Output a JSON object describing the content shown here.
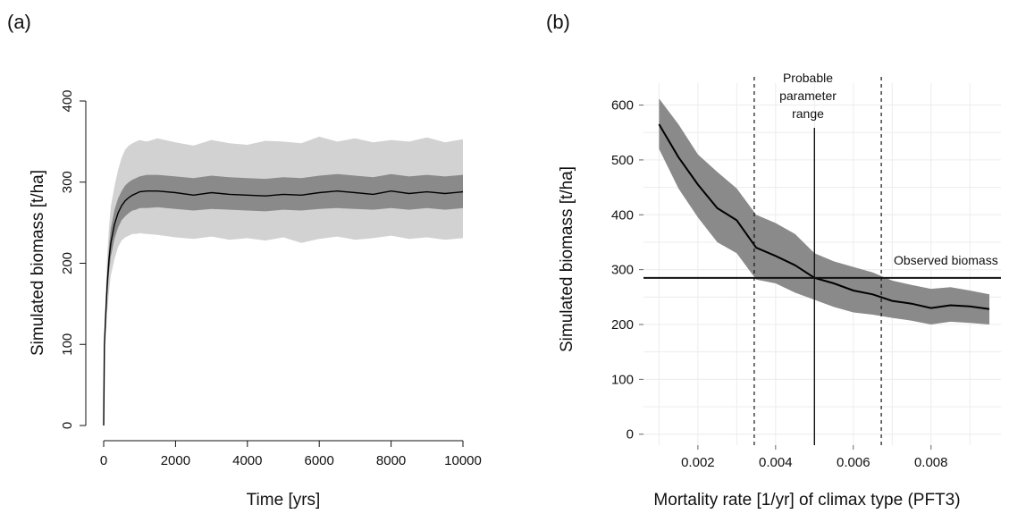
{
  "panels": {
    "a": {
      "tag": "(a)"
    },
    "b": {
      "tag": "(b)"
    }
  },
  "colors": {
    "band_outer": "#d2d2d2",
    "band_inner": "#8a8a8b",
    "line": "#000000",
    "grid": "#ececec"
  },
  "chart_data": [
    {
      "id": "a",
      "type": "area",
      "title": "",
      "xlabel": "Time [yrs]",
      "ylabel": "Simulated biomass [t/ha]",
      "xlim": [
        0,
        10000
      ],
      "ylim": [
        0,
        400
      ],
      "xticks": [
        "0",
        "2000",
        "4000",
        "6000",
        "8000",
        "10000"
      ],
      "yticks": [
        "0",
        "100",
        "200",
        "300",
        "400"
      ],
      "grid": false,
      "x": [
        0,
        20,
        50,
        100,
        150,
        200,
        300,
        400,
        500,
        600,
        700,
        800,
        900,
        1000,
        1200,
        1500,
        2000,
        2500,
        3000,
        3500,
        4000,
        4500,
        5000,
        5500,
        6000,
        6500,
        7000,
        7500,
        8000,
        8500,
        9000,
        9500,
        10000
      ],
      "series": [
        {
          "values": [
            0,
            98,
            130,
            175,
            205,
            225,
            248,
            262,
            271,
            277,
            281,
            284,
            286,
            288,
            289,
            289,
            287,
            284,
            287,
            285,
            284,
            283,
            285,
            284,
            287,
            289,
            287,
            285,
            289,
            286,
            288,
            286,
            288
          ]
        }
      ],
      "band_inner": {
        "low": [
          0,
          95,
          120,
          160,
          188,
          208,
          230,
          244,
          253,
          258,
          262,
          265,
          266,
          268,
          268,
          269,
          267,
          265,
          267,
          266,
          265,
          264,
          266,
          265,
          267,
          268,
          267,
          266,
          268,
          266,
          268,
          266,
          268
        ],
        "high": [
          0,
          102,
          140,
          190,
          222,
          243,
          266,
          280,
          289,
          296,
          300,
          303,
          305,
          307,
          309,
          309,
          307,
          305,
          308,
          306,
          305,
          304,
          306,
          305,
          308,
          310,
          308,
          306,
          310,
          307,
          309,
          307,
          309
        ]
      },
      "band_outer": {
        "low": [
          0,
          90,
          105,
          140,
          165,
          185,
          205,
          220,
          228,
          232,
          234,
          236,
          236,
          237,
          236,
          235,
          232,
          230,
          233,
          229,
          231,
          228,
          232,
          225,
          230,
          233,
          229,
          231,
          234,
          230,
          232,
          229,
          231
        ],
        "high": [
          0,
          108,
          155,
          210,
          245,
          270,
          295,
          315,
          330,
          340,
          345,
          348,
          350,
          352,
          350,
          354,
          349,
          345,
          352,
          348,
          346,
          351,
          350,
          348,
          356,
          350,
          354,
          349,
          352,
          350,
          355,
          349,
          353
        ]
      }
    },
    {
      "id": "b",
      "type": "line",
      "title": "",
      "xlabel": "Mortality rate [1/yr] of climax type (PFT3)",
      "ylabel": "Simulated biomass [t/ha]",
      "xlim": [
        0.0006,
        0.0098
      ],
      "ylim": [
        -20,
        640
      ],
      "xticks": [
        "0.002",
        "0.004",
        "0.006",
        "0.008"
      ],
      "yticks": [
        "0",
        "100",
        "200",
        "300",
        "400",
        "500",
        "600"
      ],
      "grid": true,
      "x": [
        0.001,
        0.0015,
        0.002,
        0.0025,
        0.003,
        0.0035,
        0.004,
        0.0045,
        0.005,
        0.0055,
        0.006,
        0.0065,
        0.007,
        0.0075,
        0.008,
        0.0085,
        0.009,
        0.0095
      ],
      "series": [
        {
          "values": [
            565,
            505,
            455,
            412,
            390,
            340,
            325,
            308,
            285,
            275,
            262,
            255,
            243,
            238,
            230,
            235,
            233,
            228
          ]
        }
      ],
      "band": {
        "low": [
          520,
          448,
          395,
          350,
          330,
          282,
          275,
          258,
          245,
          232,
          222,
          218,
          212,
          207,
          200,
          205,
          203,
          200
        ],
        "high": [
          612,
          565,
          510,
          478,
          448,
          400,
          385,
          365,
          330,
          315,
          305,
          295,
          280,
          272,
          265,
          268,
          262,
          255
        ]
      },
      "hline": {
        "y": 285,
        "label": "Observed biomass"
      },
      "vline_solid": {
        "x": 0.005
      },
      "vlines_dashed": [
        {
          "x": 0.00345
        },
        {
          "x": 0.00672
        }
      ],
      "annotation": [
        "Probable",
        "parameter",
        "range"
      ]
    }
  ]
}
